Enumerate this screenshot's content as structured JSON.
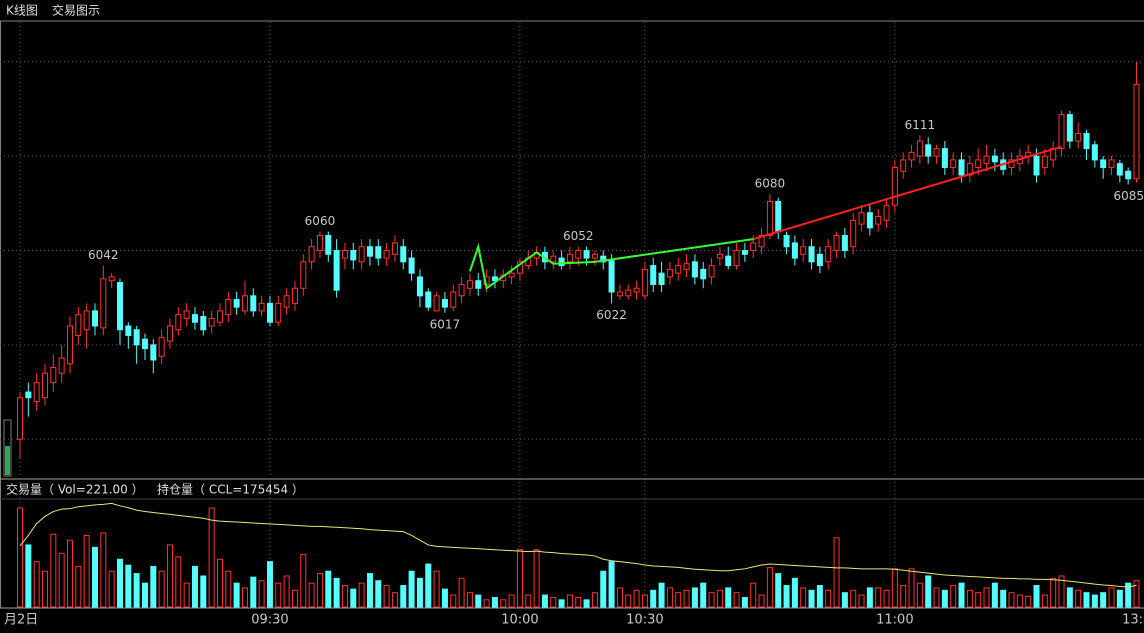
{
  "tabs": [
    "K线图",
    "交易图示"
  ],
  "chart_data": {
    "type": "candlestick",
    "up_color": "#ff3232",
    "down_color": "#54ffff",
    "xlim": [
      -2.4,
      134.9
    ],
    "xticks": [
      {
        "value": 0,
        "label": "月2日"
      },
      {
        "value": 30,
        "label": "09:30"
      },
      {
        "value": 60,
        "label": "10:00"
      },
      {
        "value": 75,
        "label": "10:30"
      },
      {
        "value": 105,
        "label": "11:00"
      },
      {
        "value": 135,
        "label": "13:"
      }
    ],
    "ylim": [
      5930,
      6170
    ],
    "yticks": [
      5950,
      6000,
      6050,
      6100,
      6150
    ],
    "grid": true,
    "ohlc": [
      [
        5950,
        5975,
        5940,
        5972
      ],
      [
        5975,
        5980,
        5962,
        5972
      ],
      [
        5970,
        5985,
        5965,
        5980
      ],
      [
        5972,
        5990,
        5968,
        5985
      ],
      [
        5980,
        5995,
        5975,
        5988
      ],
      [
        5985,
        6000,
        5980,
        5993
      ],
      [
        5990,
        6015,
        5985,
        6010
      ],
      [
        6005,
        6020,
        6000,
        6016
      ],
      [
        6008,
        6022,
        5998,
        6018
      ],
      [
        6018,
        6022,
        6005,
        6010
      ],
      [
        6009,
        6042,
        6005,
        6035
      ],
      [
        6034,
        6038,
        6030,
        6036
      ],
      [
        6033,
        6035,
        6000,
        6008
      ],
      [
        6010,
        6012,
        5998,
        6005
      ],
      [
        6008,
        6010,
        5990,
        6000
      ],
      [
        6003,
        6006,
        5992,
        5998
      ],
      [
        6000,
        6003,
        5985,
        5992
      ],
      [
        5994,
        6008,
        5990,
        6004
      ],
      [
        6002,
        6014,
        5998,
        6010
      ],
      [
        6008,
        6020,
        6005,
        6016
      ],
      [
        6014,
        6022,
        6010,
        6018
      ],
      [
        6016,
        6020,
        6008,
        6012
      ],
      [
        6015,
        6018,
        6005,
        6008
      ],
      [
        6010,
        6018,
        6006,
        6014
      ],
      [
        6012,
        6022,
        6010,
        6018
      ],
      [
        6016,
        6028,
        6012,
        6024
      ],
      [
        6024,
        6028,
        6016,
        6020
      ],
      [
        6018,
        6034,
        6016,
        6026
      ],
      [
        6026,
        6030,
        6015,
        6018
      ],
      [
        6018,
        6026,
        6015,
        6022
      ],
      [
        6022,
        6026,
        6010,
        6012
      ],
      [
        6012,
        6026,
        6010,
        6022
      ],
      [
        6020,
        6030,
        6016,
        6026
      ],
      [
        6022,
        6034,
        6018,
        6030
      ],
      [
        6030,
        6048,
        6026,
        6044
      ],
      [
        6044,
        6056,
        6040,
        6052
      ],
      [
        6050,
        6060,
        6046,
        6058
      ],
      [
        6058,
        6060,
        6044,
        6048
      ],
      [
        6050,
        6056,
        6025,
        6029
      ],
      [
        6046,
        6054,
        6040,
        6050
      ],
      [
        6050,
        6054,
        6040,
        6045
      ],
      [
        6044,
        6056,
        6040,
        6052
      ],
      [
        6052,
        6056,
        6042,
        6047
      ],
      [
        6052,
        6056,
        6042,
        6046
      ],
      [
        6046,
        6054,
        6042,
        6050
      ],
      [
        6048,
        6058,
        6044,
        6054
      ],
      [
        6052,
        6056,
        6040,
        6044
      ],
      [
        6046,
        6050,
        6034,
        6038
      ],
      [
        6036,
        6040,
        6020,
        6026
      ],
      [
        6028,
        6030,
        6018,
        6020
      ],
      [
        6018,
        6028,
        6018,
        6026
      ],
      [
        6024,
        6028,
        6017,
        6020
      ],
      [
        6020,
        6032,
        6018,
        6028
      ],
      [
        6026,
        6036,
        6022,
        6032
      ],
      [
        6030,
        6038,
        6026,
        6034
      ],
      [
        6034,
        6038,
        6026,
        6030
      ],
      [
        6032,
        6040,
        6028,
        6036
      ],
      [
        6036,
        6040,
        6030,
        6034
      ],
      [
        6034,
        6040,
        6030,
        6037
      ],
      [
        6036,
        6042,
        6032,
        6038
      ],
      [
        6038,
        6046,
        6034,
        6044
      ],
      [
        6042,
        6050,
        6040,
        6046
      ],
      [
        6046,
        6052,
        6042,
        6049
      ],
      [
        6049,
        6052,
        6040,
        6044
      ],
      [
        6044,
        6050,
        6040,
        6047
      ],
      [
        6046,
        6050,
        6040,
        6042
      ],
      [
        6044,
        6052,
        6040,
        6048
      ],
      [
        6046,
        6052,
        6042,
        6050
      ],
      [
        6050,
        6052,
        6042,
        6046
      ],
      [
        6046,
        6050,
        6042,
        6048
      ],
      [
        6047,
        6050,
        6040,
        6044
      ],
      [
        6045,
        6048,
        6022,
        6028
      ],
      [
        6026,
        6032,
        6024,
        6028
      ],
      [
        6026,
        6032,
        6024,
        6029
      ],
      [
        6028,
        6034,
        6024,
        6030
      ],
      [
        6026,
        6044,
        6024,
        6040
      ],
      [
        6042,
        6046,
        6028,
        6032
      ],
      [
        6038,
        6044,
        6028,
        6032
      ],
      [
        6036,
        6044,
        6032,
        6040
      ],
      [
        6038,
        6046,
        6034,
        6042
      ],
      [
        6040,
        6048,
        6036,
        6043
      ],
      [
        6044,
        6048,
        6032,
        6036
      ],
      [
        6040,
        6044,
        6030,
        6035
      ],
      [
        6036,
        6046,
        6032,
        6042
      ],
      [
        6046,
        6052,
        6042,
        6048
      ],
      [
        6047,
        6052,
        6040,
        6042
      ],
      [
        6042,
        6054,
        6040,
        6050
      ],
      [
        6050,
        6054,
        6044,
        6048
      ],
      [
        6050,
        6058,
        6046,
        6054
      ],
      [
        6052,
        6062,
        6048,
        6058
      ],
      [
        6058,
        6080,
        6056,
        6076
      ],
      [
        6076,
        6078,
        6056,
        6060
      ],
      [
        6058,
        6060,
        6048,
        6052
      ],
      [
        6054,
        6058,
        6042,
        6046
      ],
      [
        6048,
        6056,
        6044,
        6052
      ],
      [
        6052,
        6056,
        6040,
        6044
      ],
      [
        6048,
        6052,
        6038,
        6042
      ],
      [
        6044,
        6056,
        6040,
        6052
      ],
      [
        6050,
        6060,
        6046,
        6058
      ],
      [
        6058,
        6062,
        6046,
        6050
      ],
      [
        6052,
        6070,
        6048,
        6066
      ],
      [
        6064,
        6074,
        6060,
        6070
      ],
      [
        6070,
        6074,
        6058,
        6062
      ],
      [
        6064,
        6072,
        6060,
        6068
      ],
      [
        6066,
        6078,
        6062,
        6074
      ],
      [
        6074,
        6098,
        6070,
        6094
      ],
      [
        6092,
        6102,
        6088,
        6098
      ],
      [
        6098,
        6106,
        6094,
        6102
      ],
      [
        6100,
        6111,
        6096,
        6108
      ],
      [
        6106,
        6110,
        6096,
        6100
      ],
      [
        6100,
        6106,
        6096,
        6104
      ],
      [
        6104,
        6108,
        6090,
        6094
      ],
      [
        6094,
        6102,
        6090,
        6098
      ],
      [
        6098,
        6102,
        6086,
        6090
      ],
      [
        6090,
        6100,
        6086,
        6096
      ],
      [
        6094,
        6104,
        6090,
        6098
      ],
      [
        6096,
        6106,
        6092,
        6100
      ],
      [
        6100,
        6104,
        6092,
        6097
      ],
      [
        6098,
        6102,
        6090,
        6093
      ],
      [
        6094,
        6102,
        6090,
        6098
      ],
      [
        6096,
        6104,
        6092,
        6100
      ],
      [
        6100,
        6106,
        6096,
        6102
      ],
      [
        6100,
        6104,
        6086,
        6090
      ],
      [
        6094,
        6104,
        6090,
        6100
      ],
      [
        6098,
        6108,
        6094,
        6104
      ],
      [
        6104,
        6124,
        6100,
        6122
      ],
      [
        6122,
        6124,
        6104,
        6108
      ],
      [
        6108,
        6118,
        6104,
        6112
      ],
      [
        6112,
        6114,
        6098,
        6104
      ],
      [
        6106,
        6108,
        6094,
        6098
      ],
      [
        6098,
        6100,
        6088,
        6094
      ],
      [
        6094,
        6100,
        6090,
        6098
      ],
      [
        6096,
        6098,
        6086,
        6090
      ],
      [
        6092,
        6094,
        6085,
        6088
      ],
      [
        6088,
        6150,
        6086,
        6138
      ]
    ],
    "extremes": [
      {
        "index": 10,
        "value": 6042,
        "side": "high"
      },
      {
        "index": 36,
        "value": 6060,
        "side": "high"
      },
      {
        "index": 51,
        "value": 6017,
        "side": "low"
      },
      {
        "index": 67,
        "value": 6052,
        "side": "high"
      },
      {
        "index": 71,
        "value": 6022,
        "side": "low"
      },
      {
        "index": 90,
        "value": 6080,
        "side": "high"
      },
      {
        "index": 108,
        "value": 6111,
        "side": "high"
      },
      {
        "index": 133,
        "value": 6085,
        "side": "low"
      }
    ],
    "drawings": [
      {
        "color": "#33ff33",
        "points": [
          [
            54,
            6039
          ],
          [
            55,
            6052
          ],
          [
            56,
            6030
          ],
          [
            62,
            6049
          ],
          [
            64,
            6043
          ],
          [
            69,
            6044
          ],
          [
            88,
            6056
          ]
        ]
      },
      {
        "color": "#ff2020",
        "points": [
          [
            88,
            6056
          ],
          [
            125,
            6105
          ]
        ]
      }
    ],
    "volume_header": "交易量（ Vol=221.00 ）",
    "oi_header": "持仓量（ CCL=175454 ）",
    "volume_ylim": [
      0,
      880
    ],
    "volumes": [
      830,
      520,
      380,
      300,
      610,
      450,
      560,
      340,
      600,
      500,
      620,
      300,
      400,
      350,
      280,
      200,
      340,
      300,
      520,
      420,
      200,
      340,
      260,
      830,
      400,
      300,
      200,
      160,
      250,
      220,
      380,
      200,
      260,
      140,
      440,
      200,
      280,
      300,
      240,
      180,
      150,
      200,
      280,
      220,
      180,
      120,
      180,
      300,
      240,
      360,
      300,
      150,
      100,
      240,
      120,
      100,
      60,
      80,
      60,
      100,
      480,
      100,
      480,
      100,
      80,
      60,
      100,
      80,
      60,
      120,
      300,
      380,
      160,
      100,
      140,
      100,
      140,
      200,
      160,
      120,
      140,
      160,
      200,
      120,
      140,
      160,
      120,
      80,
      200,
      100,
      330,
      280,
      180,
      240,
      160,
      140,
      180,
      140,
      580,
      120,
      140,
      100,
      160,
      160,
      140,
      320,
      180,
      320,
      200,
      260,
      160,
      140,
      180,
      200,
      140,
      120,
      160,
      200,
      140,
      120,
      100,
      90,
      180,
      100,
      240,
      260,
      160,
      140,
      120,
      100,
      120,
      160,
      140,
      200,
      221
    ],
    "oi_ylim": [
      175000,
      177200
    ],
    "oi_color": "#e8e87a",
    "oi": [
      176280,
      176500,
      176750,
      176900,
      177000,
      177050,
      177060,
      177100,
      177120,
      177140,
      177150,
      177170,
      177120,
      177080,
      177030,
      177000,
      176980,
      176960,
      176940,
      176920,
      176900,
      176880,
      176860,
      176820,
      176800,
      176790,
      176780,
      176770,
      176760,
      176750,
      176740,
      176730,
      176720,
      176710,
      176700,
      176690,
      176690,
      176680,
      176670,
      176660,
      176650,
      176640,
      176620,
      176610,
      176600,
      176590,
      176580,
      176500,
      176400,
      176300,
      176270,
      176260,
      176250,
      176240,
      176230,
      176220,
      176210,
      176200,
      176190,
      176180,
      176170,
      176160,
      176170,
      176150,
      176140,
      176120,
      176110,
      176100,
      176090,
      176070,
      176000,
      175970,
      175950,
      175930,
      175910,
      175880,
      175860,
      175850,
      175840,
      175830,
      175810,
      175790,
      175780,
      175770,
      175760,
      175760,
      175780,
      175800,
      175840,
      175880,
      175900,
      175890,
      175880,
      175870,
      175860,
      175850,
      175840,
      175830,
      175820,
      175820,
      175810,
      175800,
      175800,
      175800,
      175800,
      175790,
      175770,
      175750,
      175730,
      175710,
      175690,
      175670,
      175660,
      175650,
      175640,
      175630,
      175620,
      175610,
      175600,
      175600,
      175590,
      175590,
      175580,
      175580,
      175570,
      175560,
      175540,
      175520,
      175500,
      175480,
      175460,
      175450,
      175430,
      175420,
      175454
    ]
  }
}
